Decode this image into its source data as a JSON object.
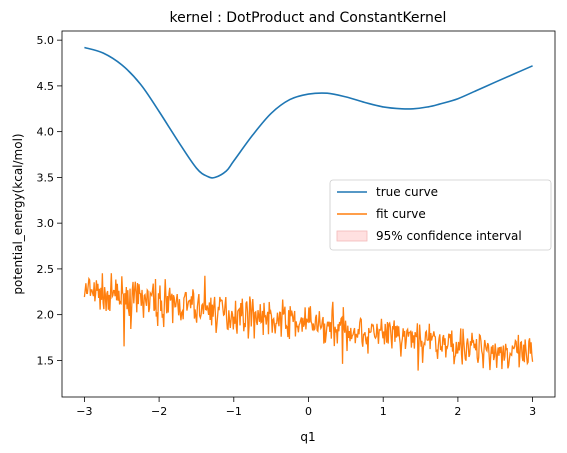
{
  "chart_data": {
    "type": "line",
    "title": "kernel : DotProduct and ConstantKernel",
    "xlabel": "q1",
    "ylabel": "potential_energy(kcal/mol)",
    "xlim": [
      -3.3,
      3.3
    ],
    "ylim": [
      1.1,
      5.1
    ],
    "x_ticks": [
      -3,
      -2,
      -1,
      0,
      1,
      2,
      3
    ],
    "x_tick_labels": [
      "−3",
      "−2",
      "−1",
      "0",
      "1",
      "2",
      "3"
    ],
    "y_ticks": [
      1.5,
      2.0,
      2.5,
      3.0,
      3.5,
      4.0,
      4.5,
      5.0
    ],
    "y_tick_labels": [
      "1.5",
      "2.0",
      "2.5",
      "3.0",
      "3.5",
      "4.0",
      "4.5",
      "5.0"
    ],
    "grid": false,
    "legend_position": "center-right",
    "series": [
      {
        "name": "true curve",
        "color": "#1f77b4",
        "x": [
          -3.0,
          -2.75,
          -2.5,
          -2.25,
          -2.0,
          -1.75,
          -1.5,
          -1.35,
          -1.25,
          -1.1,
          -1.0,
          -0.75,
          -0.5,
          -0.25,
          0.0,
          0.25,
          0.5,
          0.75,
          1.0,
          1.25,
          1.4,
          1.6,
          1.75,
          2.0,
          2.25,
          2.5,
          2.75,
          3.0
        ],
        "y": [
          4.92,
          4.86,
          4.73,
          4.52,
          4.22,
          3.9,
          3.6,
          3.51,
          3.5,
          3.57,
          3.68,
          3.96,
          4.2,
          4.35,
          4.41,
          4.42,
          4.38,
          4.32,
          4.27,
          4.25,
          4.25,
          4.27,
          4.3,
          4.36,
          4.45,
          4.54,
          4.63,
          4.72
        ]
      },
      {
        "name": "fit curve",
        "color": "#ff7f0e",
        "trend_start": [
          -3.0,
          2.25
        ],
        "trend_end": [
          3.0,
          1.55
        ],
        "noise_amplitude": 0.22,
        "point_count": 600
      }
    ],
    "confidence_band": {
      "name": "95% confidence interval",
      "color": "#ffe0e0"
    }
  }
}
